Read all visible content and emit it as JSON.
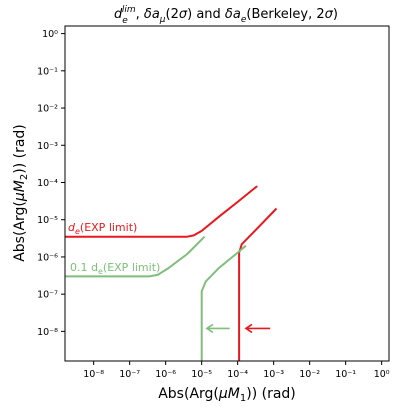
{
  "chart_data": {
    "type": "line",
    "title": "d_e^{lim}, δa_μ(2σ) and δa_e(Berkeley, 2σ)",
    "xlabel": "Abs(Arg(μM₁)) (rad)",
    "ylabel": "Abs(Arg(μM₂)) (rad)",
    "x_scale": "log",
    "y_scale": "log",
    "xlim": [
      1.6e-09,
      1.6
    ],
    "ylim": [
      1.6e-09,
      1.6
    ],
    "grid": false,
    "x_tick_labels": [
      "10⁻⁸",
      "10⁻⁷",
      "10⁻⁶",
      "10⁻⁵",
      "10⁻⁴",
      "10⁻³",
      "10⁻²",
      "10⁻¹",
      "10⁰"
    ],
    "y_tick_labels": [
      "10⁻⁸",
      "10⁻⁷",
      "10⁻⁶",
      "10⁻⁵",
      "10⁻⁴",
      "10⁻³",
      "10⁻²",
      "10⁻¹",
      "10⁰"
    ],
    "colors": {
      "red": "#e8191e",
      "green": "#7fbf7b"
    },
    "annotations": {
      "red_label": "d",
      "red_sub": "e",
      "red_rest": "(EXP limit)",
      "green_label": "0.1 d",
      "green_sub": "e",
      "green_rest": "(EXP limit)"
    },
    "series": [
      {
        "color": "#e8191e",
        "points": [
          [
            1.6e-09,
            3.5e-06
          ],
          [
            4e-06,
            3.5e-06
          ],
          [
            6e-06,
            3.8e-06
          ],
          [
            1e-05,
            5e-06
          ],
          [
            3e-05,
            1.2e-05
          ],
          [
            0.0001,
            3e-05
          ],
          [
            0.00035,
            8e-05
          ]
        ]
      },
      {
        "color": "#e8191e",
        "points": [
          [
            0.00011,
            1.5e-09
          ],
          [
            0.00011,
            1.3e-06
          ],
          [
            0.00013,
            2.2e-06
          ],
          [
            0.0003,
            5e-06
          ],
          [
            0.0012,
            2e-05
          ]
        ]
      },
      {
        "color": "#7fbf7b",
        "points": [
          [
            1.6e-09,
            3e-07
          ],
          [
            3.5e-07,
            3e-07
          ],
          [
            6e-07,
            3.3e-07
          ],
          [
            1.2e-06,
            5e-07
          ],
          [
            4e-06,
            1.2e-06
          ],
          [
            1.2e-05,
            3.5e-06
          ]
        ]
      },
      {
        "color": "#7fbf7b",
        "points": [
          [
            1e-05,
            1.5e-09
          ],
          [
            1e-05,
            1.2e-07
          ],
          [
            1.3e-05,
            2.2e-07
          ],
          [
            3e-05,
            5e-07
          ],
          [
            9e-05,
            1.2e-06
          ],
          [
            0.00017,
            2e-06
          ]
        ]
      }
    ],
    "arrows": [
      {
        "color": "#e8191e",
        "from": [
          0.0008,
          1.2e-08
        ],
        "to": [
          0.00017,
          1.2e-08
        ]
      },
      {
        "color": "#7fbf7b",
        "from": [
          6e-05,
          1.2e-08
        ],
        "to": [
          1.4e-05,
          1.2e-08
        ]
      }
    ]
  }
}
